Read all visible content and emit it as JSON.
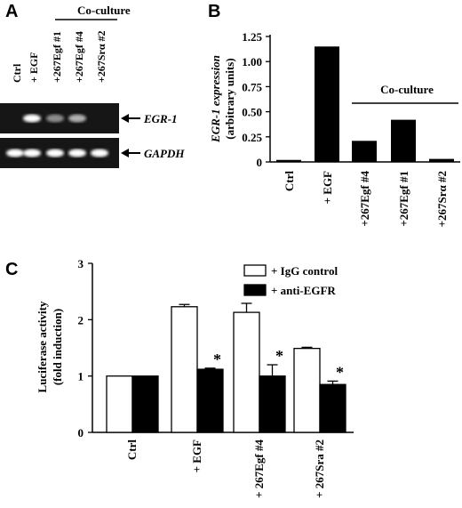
{
  "panels": {
    "a": {
      "letter": "A",
      "group_label": "Co-culture",
      "lanes": [
        "Ctrl",
        "+ EGF",
        "+267Egf #1",
        "+267Egf #4",
        "+267Srα #2"
      ],
      "rows": [
        {
          "label": "EGR-1",
          "bands": [
            0.0,
            1.0,
            0.35,
            0.55,
            0.0
          ]
        },
        {
          "label": "GAPDH",
          "bands": [
            1.0,
            1.0,
            1.0,
            1.0,
            1.0
          ]
        }
      ]
    },
    "b": {
      "letter": "B",
      "group_label": "Co-culture"
    },
    "c": {
      "letter": "C",
      "significance_marker": "*"
    }
  },
  "chart_data": [
    {
      "type": "bar",
      "categories": [
        "Ctrl",
        "+ EGF",
        "+267Egf #4",
        "+267Egf #1",
        "+267Srα #2"
      ],
      "values": [
        0.02,
        1.15,
        0.21,
        0.42,
        0.03
      ],
      "ylabel_lines": [
        "EGR-1 expression",
        "(arbitrary units)"
      ],
      "ylim": [
        0,
        1.25
      ],
      "yticks": [
        "0",
        "0.25",
        "0.50",
        "0.75",
        "1.00",
        "1.25"
      ],
      "ytick_values": [
        0,
        0.25,
        0.5,
        0.75,
        1.0,
        1.25
      ],
      "grid": false,
      "bar_color": "#000000"
    },
    {
      "type": "bar",
      "categories": [
        "Ctrl",
        "+ EGF",
        "+ 267Egf #4",
        "+ 267Sra #2"
      ],
      "series": [
        {
          "name": "+ IgG control",
          "values": [
            1.0,
            2.23,
            2.13,
            1.49
          ],
          "errors": [
            0.0,
            0.04,
            0.16,
            0.02
          ],
          "fill": "#ffffff"
        },
        {
          "name": "+ anti-EGFR",
          "values": [
            1.0,
            1.12,
            1.0,
            0.85
          ],
          "errors": [
            0.0,
            0.02,
            0.2,
            0.06
          ],
          "fill": "#000000"
        }
      ],
      "significant": [
        false,
        true,
        true,
        true
      ],
      "ylabel_lines": [
        "Luciferase activity",
        "(fold induction)"
      ],
      "ylim": [
        0,
        3
      ],
      "yticks": [
        "0",
        "1",
        "2",
        "3"
      ],
      "ytick_values": [
        0,
        1,
        2,
        3
      ],
      "legend_position": "top-right",
      "grid": false
    }
  ]
}
